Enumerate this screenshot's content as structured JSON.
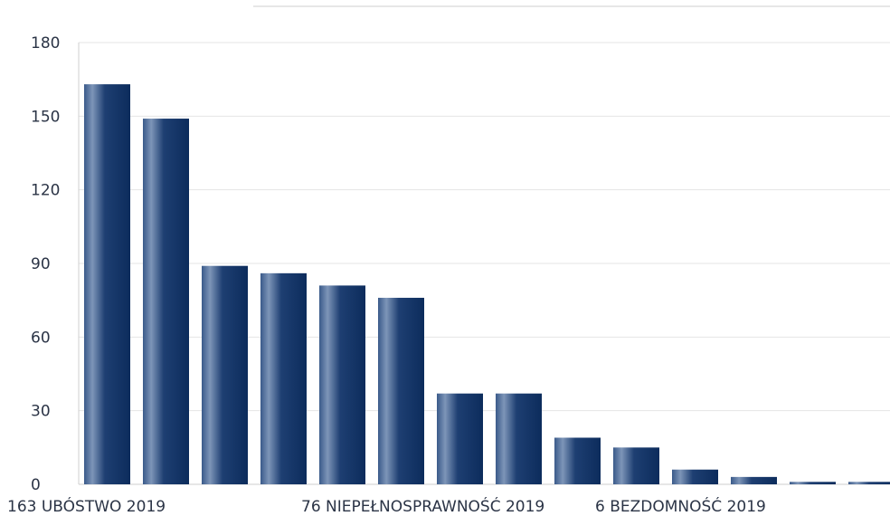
{
  "chart_data": {
    "type": "bar",
    "categories": [
      "163 UBÓSTWO 2019",
      "",
      "",
      "",
      "",
      "76 NIEPEŁNOSPRAWNOŚĆ 2019",
      "",
      "",
      "",
      "",
      "6 BEZDOMNOŚĆ 2019",
      "",
      "",
      ""
    ],
    "values": [
      163,
      149,
      89,
      86,
      81,
      76,
      37,
      37,
      19,
      15,
      6,
      3,
      1,
      1
    ],
    "ylim": [
      0,
      180
    ],
    "yticks": [
      0,
      30,
      60,
      90,
      120,
      150,
      180
    ],
    "grid": true,
    "colors": {
      "bar_dark": "#0c2c5c",
      "bar_mid": "#1e3f72",
      "bar_light": "#7d95b8",
      "grid": "#e4e4e4",
      "text": "#2b3446"
    }
  }
}
